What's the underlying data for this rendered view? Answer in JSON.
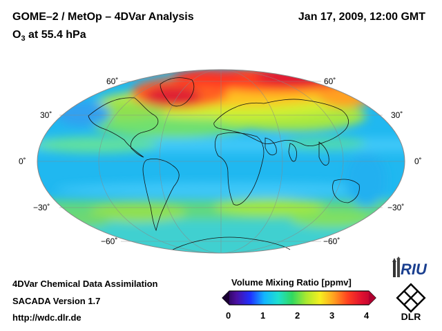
{
  "header": {
    "title": "GOME–2 / MetOp – 4DVar Analysis",
    "datetime": "Jan 17, 2009, 12:00 GMT",
    "species_main": "O",
    "species_sub": "3",
    "level": " at 55.4 hPa"
  },
  "map": {
    "projection": "Mollweide",
    "latitude_labels": {
      "n60": "60˚",
      "n30": "30˚",
      "eq": "0˚",
      "s30": "−30˚",
      "s60": "−60˚"
    },
    "field": "ozone volume mixing ratio"
  },
  "footer": {
    "line1": "4DVar Chemical Data Assimilation",
    "line2": "SACADA Version 1.7",
    "line3": "http://wdc.dlr.de"
  },
  "colorbar": {
    "title": "Volume Mixing Ratio [ppmv]",
    "ticks": [
      "0",
      "1",
      "2",
      "3",
      "4"
    ],
    "min": 0,
    "max": 4,
    "colors": [
      "#1a0033",
      "#4b0fa0",
      "#2030ff",
      "#12b5ff",
      "#1ee0d0",
      "#30d860",
      "#a8e830",
      "#f5f020",
      "#ffa020",
      "#ff4020",
      "#e01030",
      "#b00030"
    ]
  },
  "logos": {
    "riu": "RIU",
    "dlr": "DLR"
  }
}
